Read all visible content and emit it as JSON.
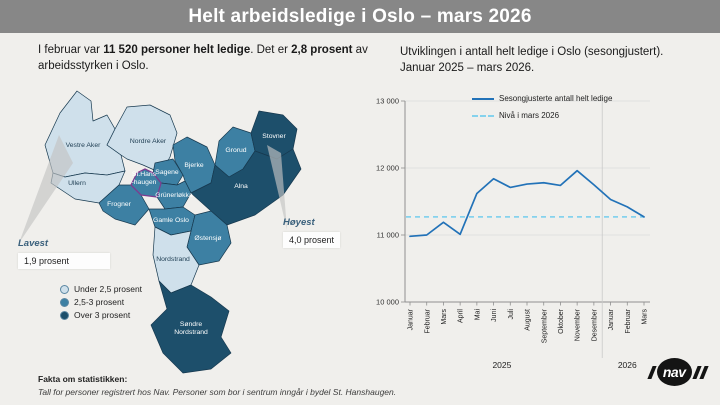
{
  "header": {
    "title": "Helt arbeidsledige i Oslo – mars 2026"
  },
  "intro": {
    "part1": "I februar var ",
    "bold1": "11 520 personer helt ledige",
    "part2": ". Det er ",
    "bold2": "2,8 prosent",
    "part3": " av arbeidsstyrken i Oslo."
  },
  "map": {
    "colors": {
      "low": "#cfe0eb",
      "mid": "#3d80a3",
      "high": "#1d4f6b",
      "border": "#17394f",
      "highlight_border": "#7d3c8f"
    },
    "legend": [
      {
        "label": "Under 2,5 prosent",
        "category": "low"
      },
      {
        "label": "2,5-3 prosent",
        "category": "mid"
      },
      {
        "label": "Over 3 prosent",
        "category": "high"
      }
    ],
    "districts": [
      {
        "id": "vestre-aker",
        "name": "Vestre Aker",
        "category": "low",
        "label_lines": [
          "Vestre Aker"
        ]
      },
      {
        "id": "nordre-aker",
        "name": "Nordre Aker",
        "category": "low",
        "label_lines": [
          "Nordre Aker"
        ]
      },
      {
        "id": "ullern",
        "name": "Ullern",
        "category": "low",
        "label_lines": [
          "Ullern"
        ]
      },
      {
        "id": "sagene",
        "name": "Sagene",
        "category": "mid",
        "label_lines": [
          "Sagene"
        ]
      },
      {
        "id": "bjerke",
        "name": "Bjerke",
        "category": "mid",
        "label_lines": [
          "Bjerke"
        ]
      },
      {
        "id": "grunerlokka",
        "name": "Grünerløkka",
        "category": "mid",
        "label_lines": [
          "Grünerløkka"
        ]
      },
      {
        "id": "frogner",
        "name": "Frogner",
        "category": "mid",
        "label_lines": [
          "Frogner"
        ]
      },
      {
        "id": "gamle-oslo",
        "name": "Gamle Oslo",
        "category": "mid",
        "label_lines": [
          "Gamle Oslo"
        ]
      },
      {
        "id": "grorud",
        "name": "Grorud",
        "category": "mid",
        "label_lines": [
          "Grorud"
        ]
      },
      {
        "id": "stovner",
        "name": "Stovner",
        "category": "high",
        "label_lines": [
          "Stovner"
        ]
      },
      {
        "id": "alna",
        "name": "Alna",
        "category": "high",
        "label_lines": [
          "Alna"
        ]
      },
      {
        "id": "ostensjo",
        "name": "Østensjø",
        "category": "mid",
        "label_lines": [
          "Østensjø"
        ]
      },
      {
        "id": "nordstrand",
        "name": "Nordstrand",
        "category": "low",
        "label_lines": [
          "Nordstrand"
        ]
      },
      {
        "id": "sondre-nordstrand",
        "name": "Søndre Nordstrand",
        "category": "high",
        "label_lines": [
          "Søndre",
          "Nordstrand"
        ]
      },
      {
        "id": "st-hanshaugen",
        "name": "St. Hanshaugen",
        "category": "mid",
        "highlighted": true,
        "label_lines": [
          "St.Hans",
          "-haugen"
        ]
      }
    ],
    "lowest": {
      "label": "Lavest",
      "value": "1,9 prosent"
    },
    "highest": {
      "label": "Høyest",
      "value": "4,0 prosent"
    }
  },
  "chart": {
    "title": "Utviklingen i antall helt ledige i Oslo (sesongjustert). Januar 2025 – mars 2026."
  },
  "chart_data": {
    "type": "line",
    "title": "Utviklingen i antall helt ledige i Oslo (sesongjustert). Januar 2025 – mars 2026.",
    "categories": [
      "Januar",
      "Februar",
      "Mars",
      "April",
      "Mai",
      "Juni",
      "Juli",
      "August",
      "September",
      "Oktober",
      "November",
      "Desember",
      "Januar",
      "Februar",
      "Mars"
    ],
    "series": [
      {
        "name": "Sesongjusterte antall helt ledige",
        "values": [
          10980,
          11000,
          11190,
          11010,
          11620,
          11840,
          11710,
          11760,
          11780,
          11740,
          11960,
          11750,
          11530,
          11420,
          11270
        ]
      }
    ],
    "reference": {
      "label": "Nivå i mars 2026",
      "value": 11270
    },
    "ylim": [
      10000,
      13000
    ],
    "ytick_step": 1000,
    "year_groups": [
      {
        "label": "2025",
        "from": 0,
        "to": 11
      },
      {
        "label": "2026",
        "from": 12,
        "to": 14
      }
    ],
    "colors": {
      "line": "#2272b8",
      "reference": "#85d2ed"
    },
    "legend_position": "top-right",
    "grid": "horizontal"
  },
  "footer": {
    "heading": "Fakta om statistikken:",
    "note": "Tall for personer registrert hos Nav. Personer som bor i sentrum inngår i bydel St. Hanshaugen."
  },
  "logo": {
    "text": "nav"
  }
}
